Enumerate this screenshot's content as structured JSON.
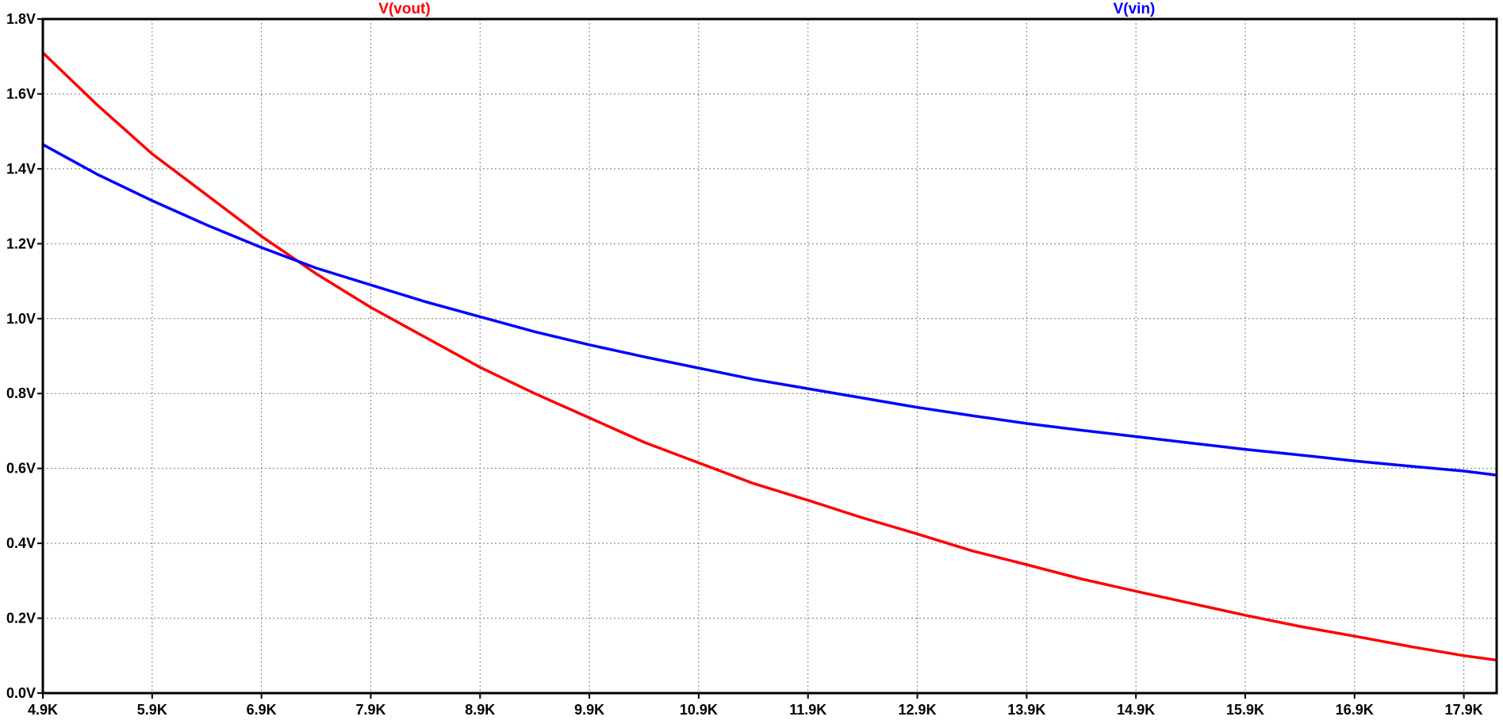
{
  "chart_data": {
    "type": "line",
    "title": "",
    "xlabel": "",
    "ylabel": "",
    "xlim": [
      4.9,
      18.2
    ],
    "ylim": [
      0.0,
      1.8
    ],
    "grid": true,
    "grid_style": "dotted",
    "x_ticks": [
      4.9,
      5.9,
      6.9,
      7.9,
      8.9,
      9.9,
      10.9,
      11.9,
      12.9,
      13.9,
      14.9,
      15.9,
      16.9,
      17.9
    ],
    "x_tick_labels": [
      "4.9K",
      "5.9K",
      "6.9K",
      "7.9K",
      "8.9K",
      "9.9K",
      "10.9K",
      "11.9K",
      "12.9K",
      "13.9K",
      "14.9K",
      "15.9K",
      "16.9K",
      "17.9K"
    ],
    "y_ticks": [
      0.0,
      0.2,
      0.4,
      0.6,
      0.8,
      1.0,
      1.2,
      1.4,
      1.6,
      1.8
    ],
    "y_tick_labels": [
      "0.0V",
      "0.2V",
      "0.4V",
      "0.6V",
      "0.8V",
      "1.0V",
      "1.2V",
      "1.4V",
      "1.6V",
      "1.8V"
    ],
    "legend_placement": "top",
    "series": [
      {
        "name": "V(vout)",
        "color": "#ff0000",
        "x": [
          4.9,
          5.4,
          5.9,
          6.4,
          6.9,
          7.4,
          7.9,
          8.4,
          8.9,
          9.4,
          9.9,
          10.4,
          10.9,
          11.4,
          11.9,
          12.4,
          12.9,
          13.4,
          13.9,
          14.4,
          14.9,
          15.4,
          15.9,
          16.4,
          16.9,
          17.4,
          17.9,
          18.2
        ],
        "y": [
          1.71,
          1.57,
          1.44,
          1.33,
          1.22,
          1.12,
          1.03,
          0.95,
          0.87,
          0.8,
          0.735,
          0.67,
          0.615,
          0.56,
          0.515,
          0.468,
          0.425,
          0.38,
          0.343,
          0.305,
          0.272,
          0.24,
          0.208,
          0.178,
          0.152,
          0.125,
          0.1,
          0.088
        ]
      },
      {
        "name": "V(vin)",
        "color": "#0000ff",
        "x": [
          4.9,
          5.4,
          5.9,
          6.4,
          6.9,
          7.4,
          7.9,
          8.4,
          8.9,
          9.4,
          9.9,
          10.4,
          10.9,
          11.4,
          11.9,
          12.4,
          12.9,
          13.4,
          13.9,
          14.4,
          14.9,
          15.4,
          15.9,
          16.4,
          16.9,
          17.4,
          17.9,
          18.2
        ],
        "y": [
          1.465,
          1.385,
          1.315,
          1.25,
          1.19,
          1.135,
          1.09,
          1.045,
          1.005,
          0.965,
          0.93,
          0.898,
          0.868,
          0.838,
          0.813,
          0.788,
          0.763,
          0.741,
          0.72,
          0.702,
          0.685,
          0.668,
          0.651,
          0.636,
          0.62,
          0.606,
          0.593,
          0.582
        ]
      }
    ]
  }
}
